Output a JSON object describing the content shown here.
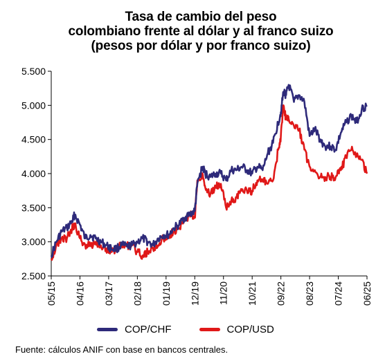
{
  "chart_data": {
    "type": "line",
    "title_lines": [
      "Tasa de cambio del peso",
      "colombiano frente al dólar y al franco suizo",
      "(pesos por dólar y por franco suizo)"
    ],
    "ylim": [
      2500,
      5500
    ],
    "yticks": [
      "5.500",
      "5.000",
      "4.500",
      "4.000",
      "3.500",
      "3.000",
      "2.500"
    ],
    "ytick_values": [
      5500,
      5000,
      4500,
      4000,
      3500,
      3000,
      2500
    ],
    "x_range": [
      "2015-05",
      "2025-06"
    ],
    "xticks": [
      "05/15",
      "04/16",
      "03/17",
      "02/18",
      "01/19",
      "12/19",
      "11/20",
      "10/21",
      "09/22",
      "08/23",
      "07/24",
      "06/25"
    ],
    "grid": false,
    "legend_position": "bottom",
    "series": [
      {
        "name": "COP/CHF",
        "color": "#2e2a7a",
        "x": [
          "2015-05",
          "2015-07",
          "2015-09",
          "2015-11",
          "2016-01",
          "2016-02",
          "2016-04",
          "2016-06",
          "2016-08",
          "2016-10",
          "2016-12",
          "2017-02",
          "2017-04",
          "2017-06",
          "2017-08",
          "2017-10",
          "2017-12",
          "2018-02",
          "2018-04",
          "2018-06",
          "2018-08",
          "2018-10",
          "2018-12",
          "2019-02",
          "2019-04",
          "2019-06",
          "2019-08",
          "2019-10",
          "2019-12",
          "2020-01",
          "2020-03",
          "2020-04",
          "2020-06",
          "2020-08",
          "2020-10",
          "2020-12",
          "2021-02",
          "2021-04",
          "2021-06",
          "2021-08",
          "2021-10",
          "2021-12",
          "2022-02",
          "2022-04",
          "2022-06",
          "2022-08",
          "2022-09",
          "2022-10",
          "2022-11",
          "2022-12",
          "2023-02",
          "2023-04",
          "2023-06",
          "2023-08",
          "2023-10",
          "2023-12",
          "2024-02",
          "2024-04",
          "2024-06",
          "2024-08",
          "2024-10",
          "2024-12",
          "2025-02",
          "2025-04",
          "2025-06"
        ],
        "values": [
          2800,
          3000,
          3150,
          3200,
          3300,
          3400,
          3250,
          3050,
          3100,
          3050,
          3000,
          2950,
          2900,
          2900,
          2950,
          2930,
          2950,
          3000,
          3050,
          3000,
          2950,
          3050,
          3100,
          3100,
          3200,
          3250,
          3350,
          3400,
          3450,
          3850,
          4100,
          4000,
          3950,
          4000,
          4000,
          3900,
          4050,
          4050,
          4100,
          4050,
          4000,
          4100,
          4050,
          4300,
          4450,
          4750,
          4900,
          5200,
          5150,
          5300,
          5050,
          5150,
          5050,
          4550,
          4650,
          4500,
          4400,
          4400,
          4350,
          4600,
          4750,
          4850,
          4750,
          4950,
          5000
        ]
      },
      {
        "name": "COP/USD",
        "color": "#e01818",
        "x": [
          "2015-05",
          "2015-07",
          "2015-09",
          "2015-11",
          "2016-01",
          "2016-02",
          "2016-04",
          "2016-06",
          "2016-08",
          "2016-10",
          "2016-12",
          "2017-02",
          "2017-04",
          "2017-06",
          "2017-08",
          "2017-10",
          "2017-12",
          "2018-02",
          "2018-04",
          "2018-06",
          "2018-08",
          "2018-10",
          "2018-12",
          "2019-02",
          "2019-04",
          "2019-06",
          "2019-08",
          "2019-10",
          "2019-12",
          "2020-01",
          "2020-03",
          "2020-04",
          "2020-06",
          "2020-08",
          "2020-10",
          "2020-12",
          "2021-02",
          "2021-04",
          "2021-06",
          "2021-08",
          "2021-10",
          "2021-12",
          "2022-02",
          "2022-04",
          "2022-06",
          "2022-08",
          "2022-09",
          "2022-10",
          "2022-11",
          "2022-12",
          "2023-02",
          "2023-04",
          "2023-06",
          "2023-08",
          "2023-10",
          "2023-12",
          "2024-02",
          "2024-04",
          "2024-06",
          "2024-08",
          "2024-10",
          "2024-12",
          "2025-02",
          "2025-04",
          "2025-06"
        ],
        "values": [
          2750,
          2950,
          3050,
          3050,
          3200,
          3250,
          3050,
          2950,
          2950,
          3000,
          2950,
          2900,
          2850,
          2900,
          2950,
          2950,
          2950,
          2850,
          2800,
          2850,
          2900,
          2950,
          3050,
          3100,
          3150,
          3200,
          3300,
          3400,
          3350,
          3900,
          4000,
          3800,
          3700,
          3800,
          3850,
          3500,
          3600,
          3650,
          3750,
          3750,
          3750,
          3900,
          3900,
          3850,
          3900,
          4350,
          4550,
          5000,
          4800,
          4800,
          4700,
          4650,
          4350,
          4100,
          4050,
          3950,
          3950,
          3950,
          3950,
          4050,
          4250,
          4350,
          4250,
          4200,
          4000
        ]
      }
    ],
    "source": "Fuente: cálculos ANIF con base en bancos centrales."
  }
}
